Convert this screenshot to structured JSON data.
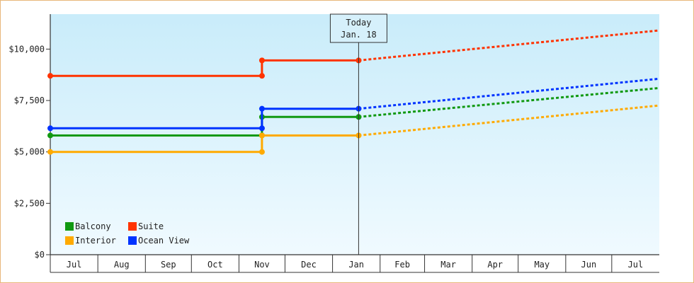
{
  "chart_data": {
    "type": "line",
    "title": "",
    "xlabel": "",
    "ylabel": "",
    "ylim": [
      0,
      11700
    ],
    "y_ticks": [
      0,
      2500,
      5000,
      7500,
      10000
    ],
    "y_tick_labels": [
      "$0",
      "$2,500",
      "$5,000",
      "$7,500",
      "$10,000"
    ],
    "x_domain": [
      "2023-07-01",
      "2024-07-31"
    ],
    "x_month_labels": [
      "Jul",
      "Aug",
      "Sep",
      "Oct",
      "Nov",
      "Dec",
      "Jan",
      "Feb",
      "Mar",
      "Apr",
      "May",
      "Jun",
      "Jul"
    ],
    "today": {
      "date": "2024-01-18",
      "label_line1": "Today",
      "label_line2": "Jan. 18"
    },
    "grid": false,
    "legend_position": "bottom-left",
    "series": [
      {
        "name": "Balcony",
        "color": "#119911",
        "history": [
          [
            "2023-07-01",
            5800
          ],
          [
            "2023-11-16",
            5800
          ],
          [
            "2023-11-16",
            6700
          ],
          [
            "2024-01-18",
            6700
          ]
        ],
        "projection": [
          [
            "2024-01-18",
            6700
          ],
          [
            "2024-07-31",
            8100
          ]
        ]
      },
      {
        "name": "Suite",
        "color": "#ff3300",
        "history": [
          [
            "2023-07-01",
            8700
          ],
          [
            "2023-11-16",
            8700
          ],
          [
            "2023-11-16",
            9450
          ],
          [
            "2024-01-18",
            9450
          ]
        ],
        "projection": [
          [
            "2024-01-18",
            9450
          ],
          [
            "2024-07-31",
            10900
          ]
        ]
      },
      {
        "name": "Interior",
        "color": "#ffaa00",
        "history": [
          [
            "2023-07-01",
            5000
          ],
          [
            "2023-11-16",
            5000
          ],
          [
            "2023-11-16",
            5800
          ],
          [
            "2024-01-18",
            5800
          ]
        ],
        "projection": [
          [
            "2024-01-18",
            5800
          ],
          [
            "2024-07-31",
            7250
          ]
        ]
      },
      {
        "name": "Ocean View",
        "color": "#0033ff",
        "history": [
          [
            "2023-07-01",
            6150
          ],
          [
            "2023-11-16",
            6150
          ],
          [
            "2023-11-16",
            7100
          ],
          [
            "2024-01-18",
            7100
          ]
        ],
        "projection": [
          [
            "2024-01-18",
            7100
          ],
          [
            "2024-07-31",
            8550
          ]
        ]
      }
    ]
  }
}
